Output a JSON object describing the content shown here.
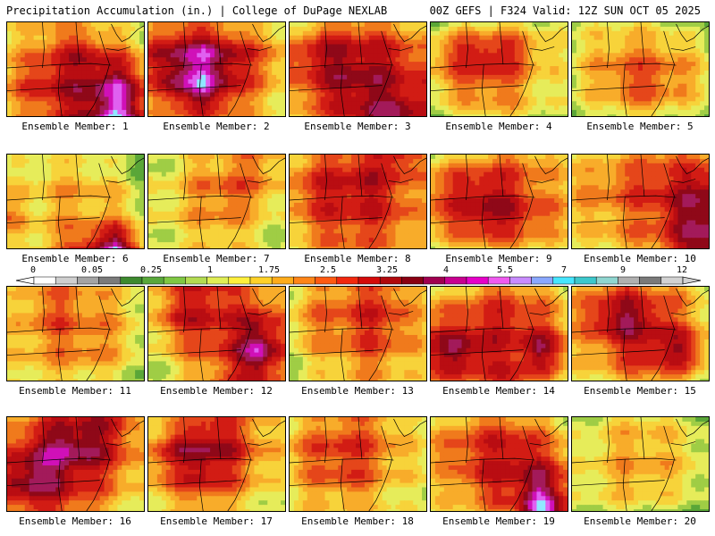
{
  "header": {
    "title": "Precipitation Accumulation (in.) | College of DuPage NEXLAB",
    "run_info": "00Z GEFS | F324 Valid: 12Z SUN OCT 05 2025"
  },
  "panel_caption_prefix": "Ensemble Member:",
  "members": [
    {
      "number": "1",
      "field": [
        [
          3,
          4,
          5,
          4,
          3,
          2
        ],
        [
          4,
          6,
          8,
          9,
          7,
          4
        ],
        [
          5,
          8,
          9,
          10,
          12,
          7
        ],
        [
          4,
          6,
          8,
          10,
          14,
          8
        ]
      ]
    },
    {
      "number": "2",
      "field": [
        [
          4,
          6,
          6,
          5,
          4,
          3
        ],
        [
          8,
          11,
          12,
          10,
          7,
          5
        ],
        [
          6,
          11,
          13,
          9,
          6,
          4
        ],
        [
          4,
          6,
          7,
          6,
          4,
          3
        ]
      ]
    },
    {
      "number": "3",
      "field": [
        [
          3,
          5,
          6,
          6,
          5,
          4
        ],
        [
          7,
          9,
          10,
          9,
          8,
          6
        ],
        [
          6,
          8,
          10,
          10,
          9,
          8
        ],
        [
          4,
          6,
          8,
          10,
          11,
          8
        ]
      ]
    },
    {
      "number": "4",
      "field": [
        [
          2,
          3,
          4,
          4,
          3,
          3
        ],
        [
          5,
          8,
          9,
          8,
          5,
          3
        ],
        [
          4,
          6,
          7,
          6,
          4,
          3
        ],
        [
          2,
          3,
          4,
          4,
          3,
          2
        ]
      ]
    },
    {
      "number": "5",
      "field": [
        [
          2,
          3,
          3,
          3,
          2,
          1
        ],
        [
          3,
          5,
          6,
          6,
          5,
          3
        ],
        [
          3,
          5,
          7,
          7,
          6,
          3
        ],
        [
          2,
          3,
          4,
          4,
          3,
          2
        ]
      ]
    },
    {
      "number": "6",
      "field": [
        [
          2,
          3,
          3,
          3,
          2,
          1
        ],
        [
          4,
          4,
          5,
          5,
          4,
          2
        ],
        [
          6,
          4,
          5,
          5,
          5,
          3
        ],
        [
          3,
          4,
          6,
          9,
          13,
          5
        ]
      ]
    },
    {
      "number": "7",
      "field": [
        [
          2,
          3,
          4,
          5,
          6,
          4
        ],
        [
          3,
          4,
          6,
          7,
          6,
          4
        ],
        [
          3,
          4,
          5,
          6,
          4,
          3
        ],
        [
          2,
          3,
          4,
          4,
          3,
          2
        ]
      ]
    },
    {
      "number": "8",
      "field": [
        [
          4,
          6,
          7,
          8,
          9,
          6
        ],
        [
          6,
          8,
          9,
          9,
          7,
          5
        ],
        [
          5,
          7,
          8,
          8,
          7,
          5
        ],
        [
          3,
          5,
          6,
          6,
          5,
          4
        ]
      ]
    },
    {
      "number": "9",
      "field": [
        [
          3,
          4,
          5,
          6,
          5,
          4
        ],
        [
          6,
          8,
          9,
          8,
          6,
          4
        ],
        [
          6,
          8,
          10,
          9,
          7,
          5
        ],
        [
          3,
          4,
          5,
          5,
          4,
          3
        ]
      ]
    },
    {
      "number": "10",
      "field": [
        [
          3,
          4,
          5,
          6,
          6,
          5
        ],
        [
          5,
          6,
          7,
          8,
          9,
          10
        ],
        [
          4,
          5,
          6,
          7,
          10,
          11
        ],
        [
          3,
          4,
          5,
          6,
          9,
          11
        ]
      ]
    },
    {
      "number": "11",
      "field": [
        [
          3,
          5,
          6,
          5,
          4,
          3
        ],
        [
          4,
          6,
          7,
          6,
          5,
          3
        ],
        [
          4,
          5,
          6,
          6,
          5,
          3
        ],
        [
          3,
          4,
          4,
          4,
          3,
          2
        ]
      ]
    },
    {
      "number": "12",
      "field": [
        [
          4,
          7,
          8,
          7,
          5,
          4
        ],
        [
          4,
          8,
          9,
          8,
          9,
          6
        ],
        [
          3,
          5,
          7,
          8,
          13,
          7
        ],
        [
          2,
          3,
          5,
          7,
          9,
          5
        ]
      ]
    },
    {
      "number": "13",
      "field": [
        [
          3,
          5,
          6,
          7,
          6,
          4
        ],
        [
          4,
          6,
          7,
          8,
          7,
          4
        ],
        [
          3,
          5,
          6,
          7,
          6,
          4
        ],
        [
          2,
          3,
          4,
          5,
          4,
          3
        ]
      ]
    },
    {
      "number": "14",
      "field": [
        [
          3,
          4,
          6,
          6,
          5,
          3
        ],
        [
          6,
          7,
          8,
          8,
          7,
          4
        ],
        [
          9,
          11,
          9,
          8,
          11,
          6
        ],
        [
          6,
          7,
          7,
          8,
          6,
          3
        ]
      ]
    },
    {
      "number": "15",
      "field": [
        [
          4,
          6,
          7,
          6,
          5,
          3
        ],
        [
          5,
          9,
          11,
          9,
          6,
          4
        ],
        [
          4,
          6,
          8,
          9,
          10,
          5
        ],
        [
          3,
          4,
          5,
          6,
          5,
          3
        ]
      ]
    },
    {
      "number": "16",
      "field": [
        [
          4,
          6,
          8,
          9,
          8,
          4
        ],
        [
          7,
          10,
          12,
          11,
          8,
          5
        ],
        [
          9,
          12,
          10,
          8,
          6,
          4
        ],
        [
          6,
          8,
          7,
          6,
          4,
          3
        ]
      ]
    },
    {
      "number": "17",
      "field": [
        [
          3,
          5,
          7,
          7,
          5,
          3
        ],
        [
          6,
          9,
          11,
          9,
          6,
          4
        ],
        [
          5,
          7,
          9,
          7,
          5,
          3
        ],
        [
          3,
          4,
          5,
          4,
          3,
          2
        ]
      ]
    },
    {
      "number": "18",
      "field": [
        [
          3,
          5,
          6,
          6,
          4,
          3
        ],
        [
          5,
          7,
          8,
          7,
          5,
          3
        ],
        [
          4,
          6,
          7,
          6,
          4,
          3
        ],
        [
          3,
          4,
          4,
          4,
          3,
          2
        ]
      ]
    },
    {
      "number": "19",
      "field": [
        [
          3,
          5,
          6,
          6,
          5,
          3
        ],
        [
          5,
          7,
          8,
          9,
          7,
          5
        ],
        [
          4,
          6,
          8,
          9,
          11,
          7
        ],
        [
          3,
          4,
          5,
          7,
          14,
          8
        ]
      ]
    },
    {
      "number": "20",
      "field": [
        [
          2,
          3,
          4,
          4,
          3,
          2
        ],
        [
          3,
          4,
          5,
          5,
          4,
          3
        ],
        [
          3,
          4,
          5,
          5,
          4,
          3
        ],
        [
          2,
          3,
          3,
          3,
          2,
          2
        ]
      ]
    }
  ],
  "colorbar": {
    "tick_labels": [
      "0",
      "0.05",
      "0.25",
      "1",
      "1.75",
      "2.5",
      "3.25",
      "4",
      "5.5",
      "7",
      "9",
      "12"
    ],
    "colors": [
      "#ffffff",
      "#cfcfcf",
      "#a4a4a4",
      "#7b7b7b",
      "#3d8a2f",
      "#59a83b",
      "#7fc843",
      "#b3dc52",
      "#e0ee55",
      "#fff03c",
      "#ffd228",
      "#ffac1a",
      "#ff8518",
      "#ff5a12",
      "#f2280e",
      "#d40a0a",
      "#b0080c",
      "#8a0012",
      "#a00050",
      "#c80090",
      "#e600c8",
      "#f05af0",
      "#c88cff",
      "#8aa8ff",
      "#46e6ff",
      "#3cc8cc",
      "#8fd6d0",
      "#b0b0b0",
      "#7a7a7a",
      "#d2d2d2"
    ],
    "level_colors": [
      "#2f7f24",
      "#5aa638",
      "#9fcd45",
      "#e6ec5a",
      "#f7d33a",
      "#f8ac2a",
      "#f07a1c",
      "#e5461a",
      "#d21c14",
      "#b90d12",
      "#8f0818",
      "#a31a5a",
      "#d010b8",
      "#e060f0",
      "#90e8ff"
    ]
  }
}
